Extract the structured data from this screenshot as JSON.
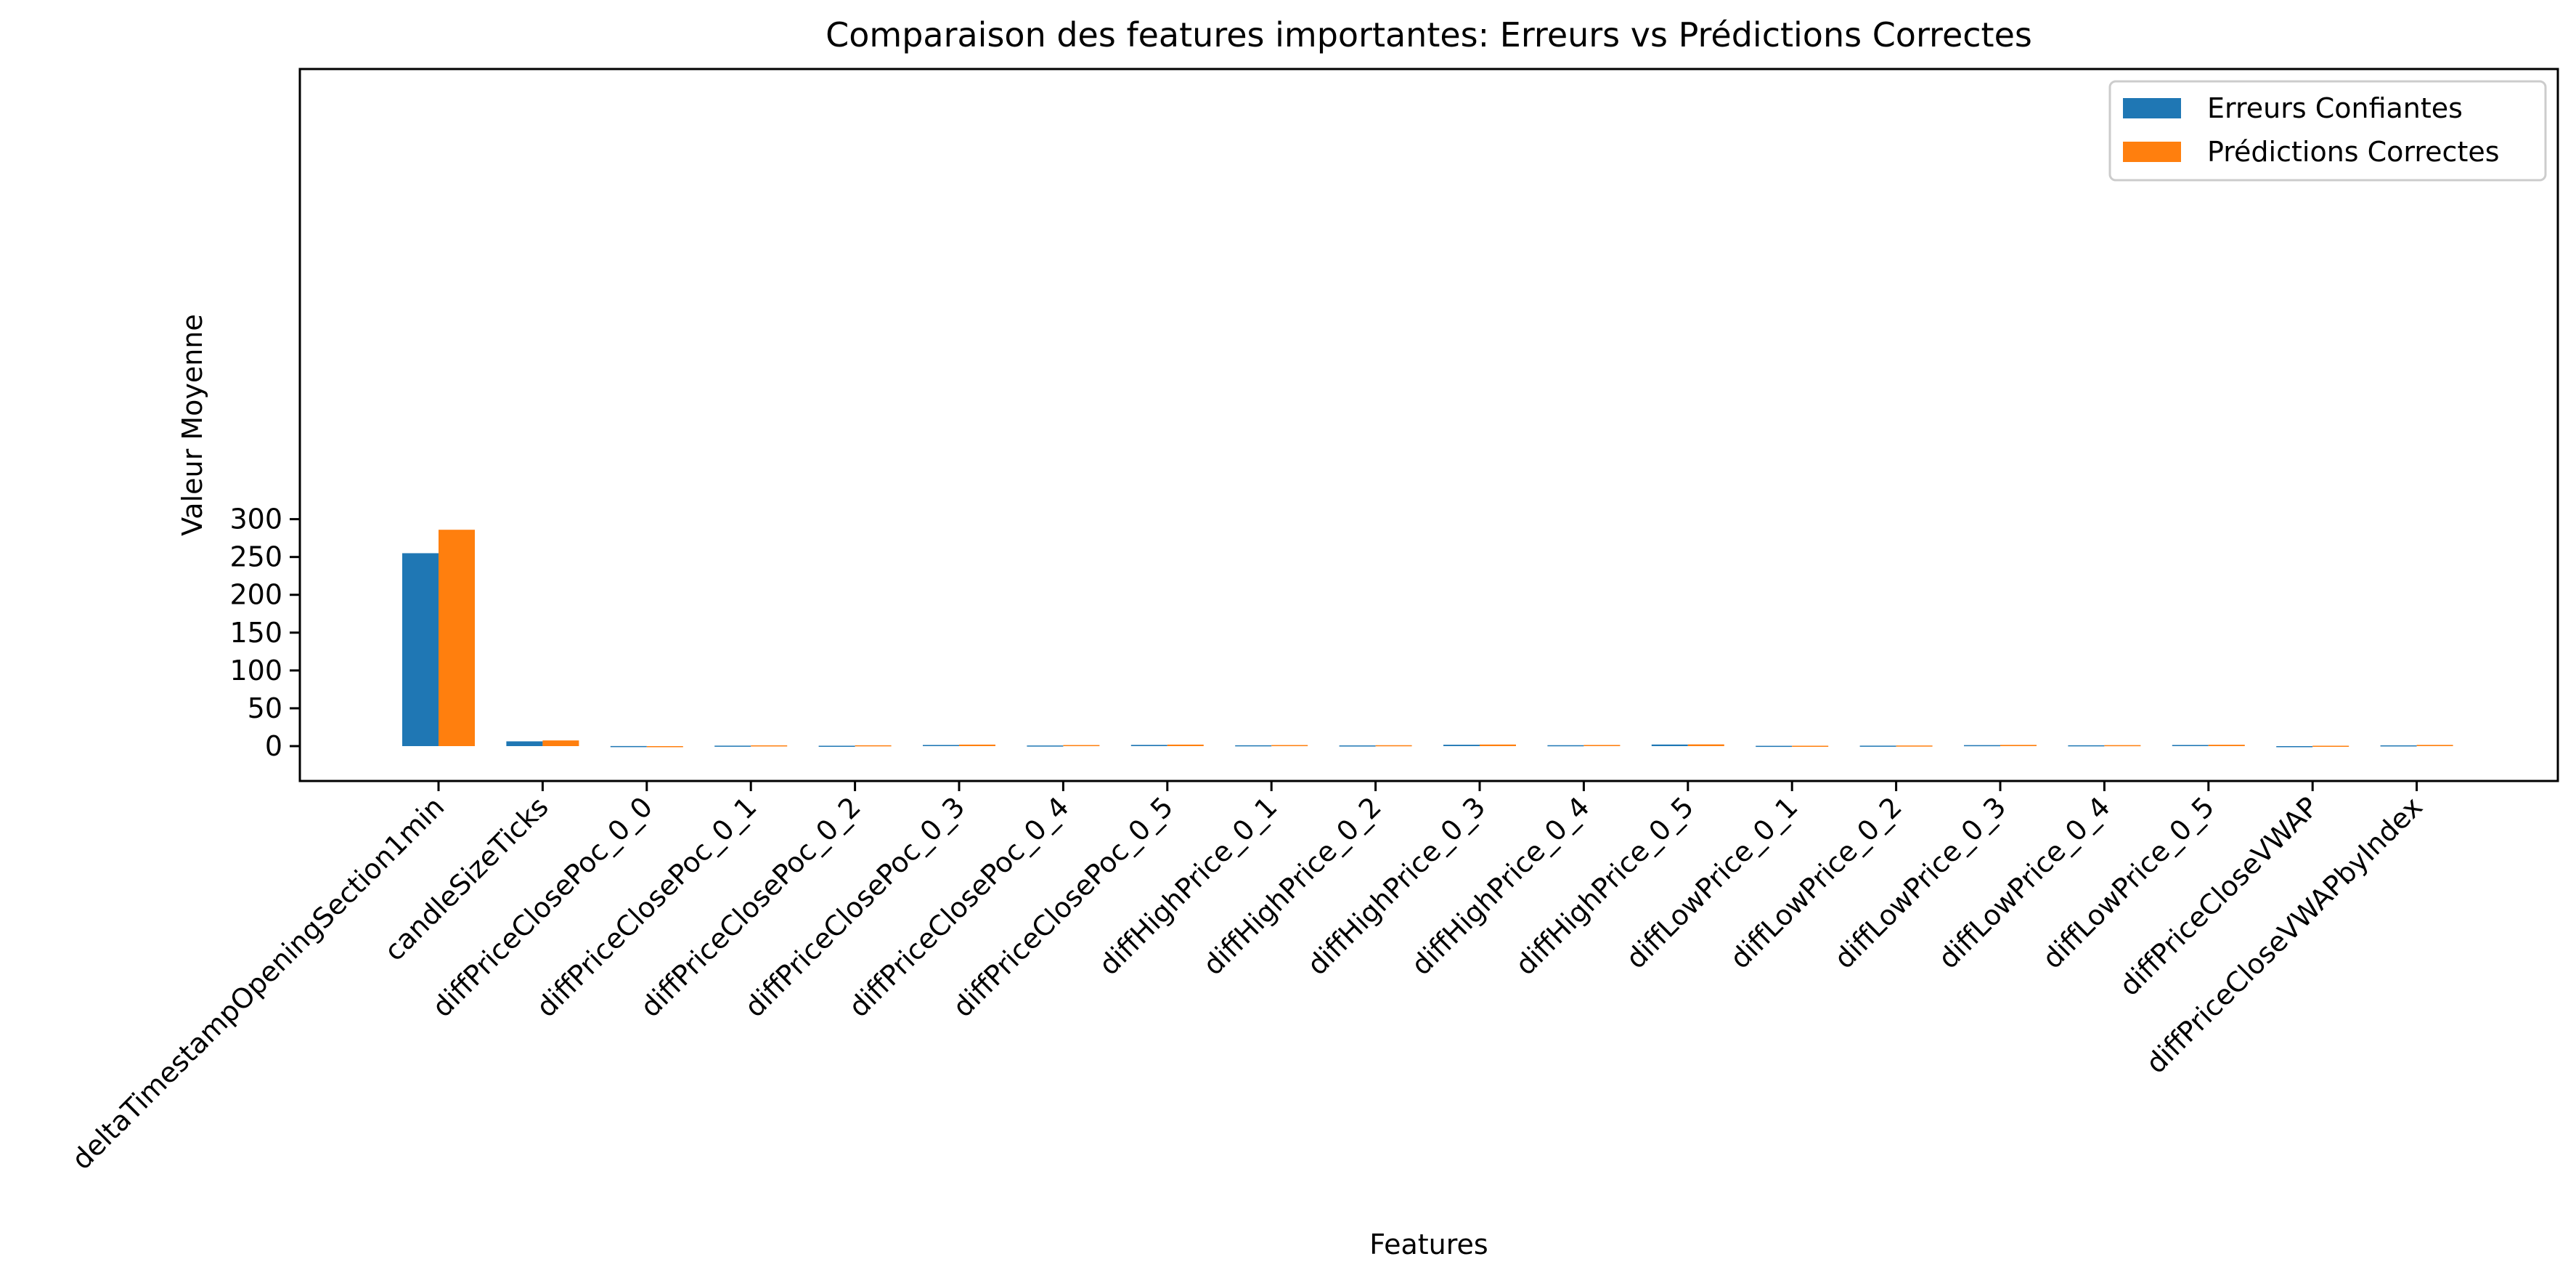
{
  "chart_data": {
    "type": "bar",
    "title": "Comparaison des features importantes: Erreurs vs Prédictions Correctes",
    "xlabel": "Features",
    "ylabel": "Valeur Moyenne",
    "ylim": [
      -15,
      300
    ],
    "yticks": [
      0,
      50,
      100,
      150,
      200,
      250,
      300
    ],
    "grid": false,
    "legend_position": "top-right",
    "categories": [
      "deltaTimestampOpeningSection1min",
      "candleSizeTicks",
      "diffPriceClosePoc_0_0",
      "diffPriceClosePoc_0_1",
      "diffPriceClosePoc_0_2",
      "diffPriceClosePoc_0_3",
      "diffPriceClosePoc_0_4",
      "diffPriceClosePoc_0_5",
      "diffHighPrice_0_1",
      "diffHighPrice_0_2",
      "diffHighPrice_0_3",
      "diffHighPrice_0_4",
      "diffHighPrice_0_5",
      "diffLowPrice_0_1",
      "diffLowPrice_0_2",
      "diffLowPrice_0_3",
      "diffLowPrice_0_4",
      "diffLowPrice_0_5",
      "diffPriceCloseVWAP",
      "diffPriceCloseVWAPbyIndex"
    ],
    "series": [
      {
        "name": "Erreurs Confiantes",
        "color": "#1f77b4",
        "values": [
          255,
          6.3,
          0.1,
          0.6,
          0.5,
          1.5,
          0.8,
          1.6,
          1.1,
          0.9,
          1.8,
          1.2,
          2.1,
          0.4,
          0.6,
          1.3,
          1.1,
          1.5,
          -0.8,
          1.0
        ]
      },
      {
        "name": "Prédictions Correctes",
        "color": "#ff7f0e",
        "values": [
          286,
          7.5,
          -0.2,
          1.0,
          1.1,
          2.0,
          1.4,
          2.0,
          1.4,
          1.2,
          2.1,
          1.5,
          2.3,
          0.5,
          0.8,
          1.6,
          1.3,
          1.8,
          0.5,
          1.6
        ]
      }
    ]
  }
}
